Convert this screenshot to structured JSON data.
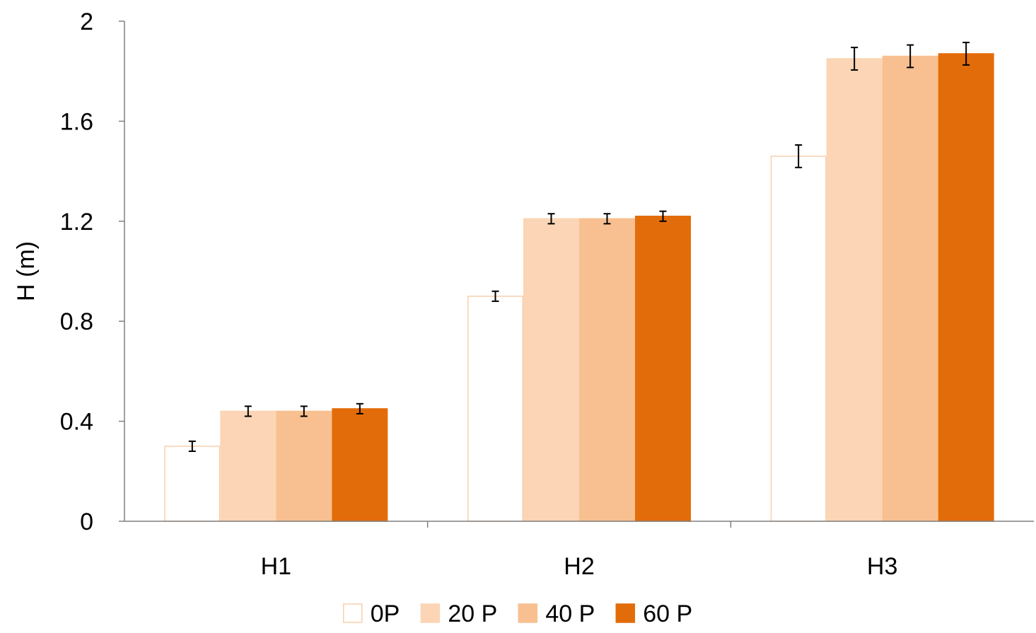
{
  "chart_data": {
    "type": "bar",
    "title": "",
    "xlabel": "",
    "ylabel": "H (m)",
    "ylim": [
      0,
      2
    ],
    "yticks": [
      "0",
      "0.4",
      "0.8",
      "1.2",
      "1.6",
      "2"
    ],
    "categories": [
      "H1",
      "H2",
      "H3"
    ],
    "grid": false,
    "legend_position": "bottom",
    "series": [
      {
        "name": "0P",
        "values": [
          0.3,
          0.9,
          1.46
        ],
        "errors": [
          0.02,
          0.02,
          0.045
        ],
        "fill": "#ffffff",
        "stroke": "#f8cfae"
      },
      {
        "name": "20 P",
        "values": [
          0.44,
          1.21,
          1.85
        ],
        "errors": [
          0.02,
          0.02,
          0.045
        ],
        "fill": "#fbd5b5",
        "stroke": "#fbd5b5"
      },
      {
        "name": "40 P",
        "values": [
          0.44,
          1.21,
          1.86
        ],
        "errors": [
          0.02,
          0.02,
          0.045
        ],
        "fill": "#f8c090",
        "stroke": "#f8c090"
      },
      {
        "name": "60 P",
        "values": [
          0.45,
          1.22,
          1.87
        ],
        "errors": [
          0.02,
          0.02,
          0.045
        ],
        "fill": "#e36c0a",
        "stroke": "#e36c0a"
      }
    ]
  },
  "colors": {
    "axis": "#808080",
    "error_bar": "#000000"
  }
}
